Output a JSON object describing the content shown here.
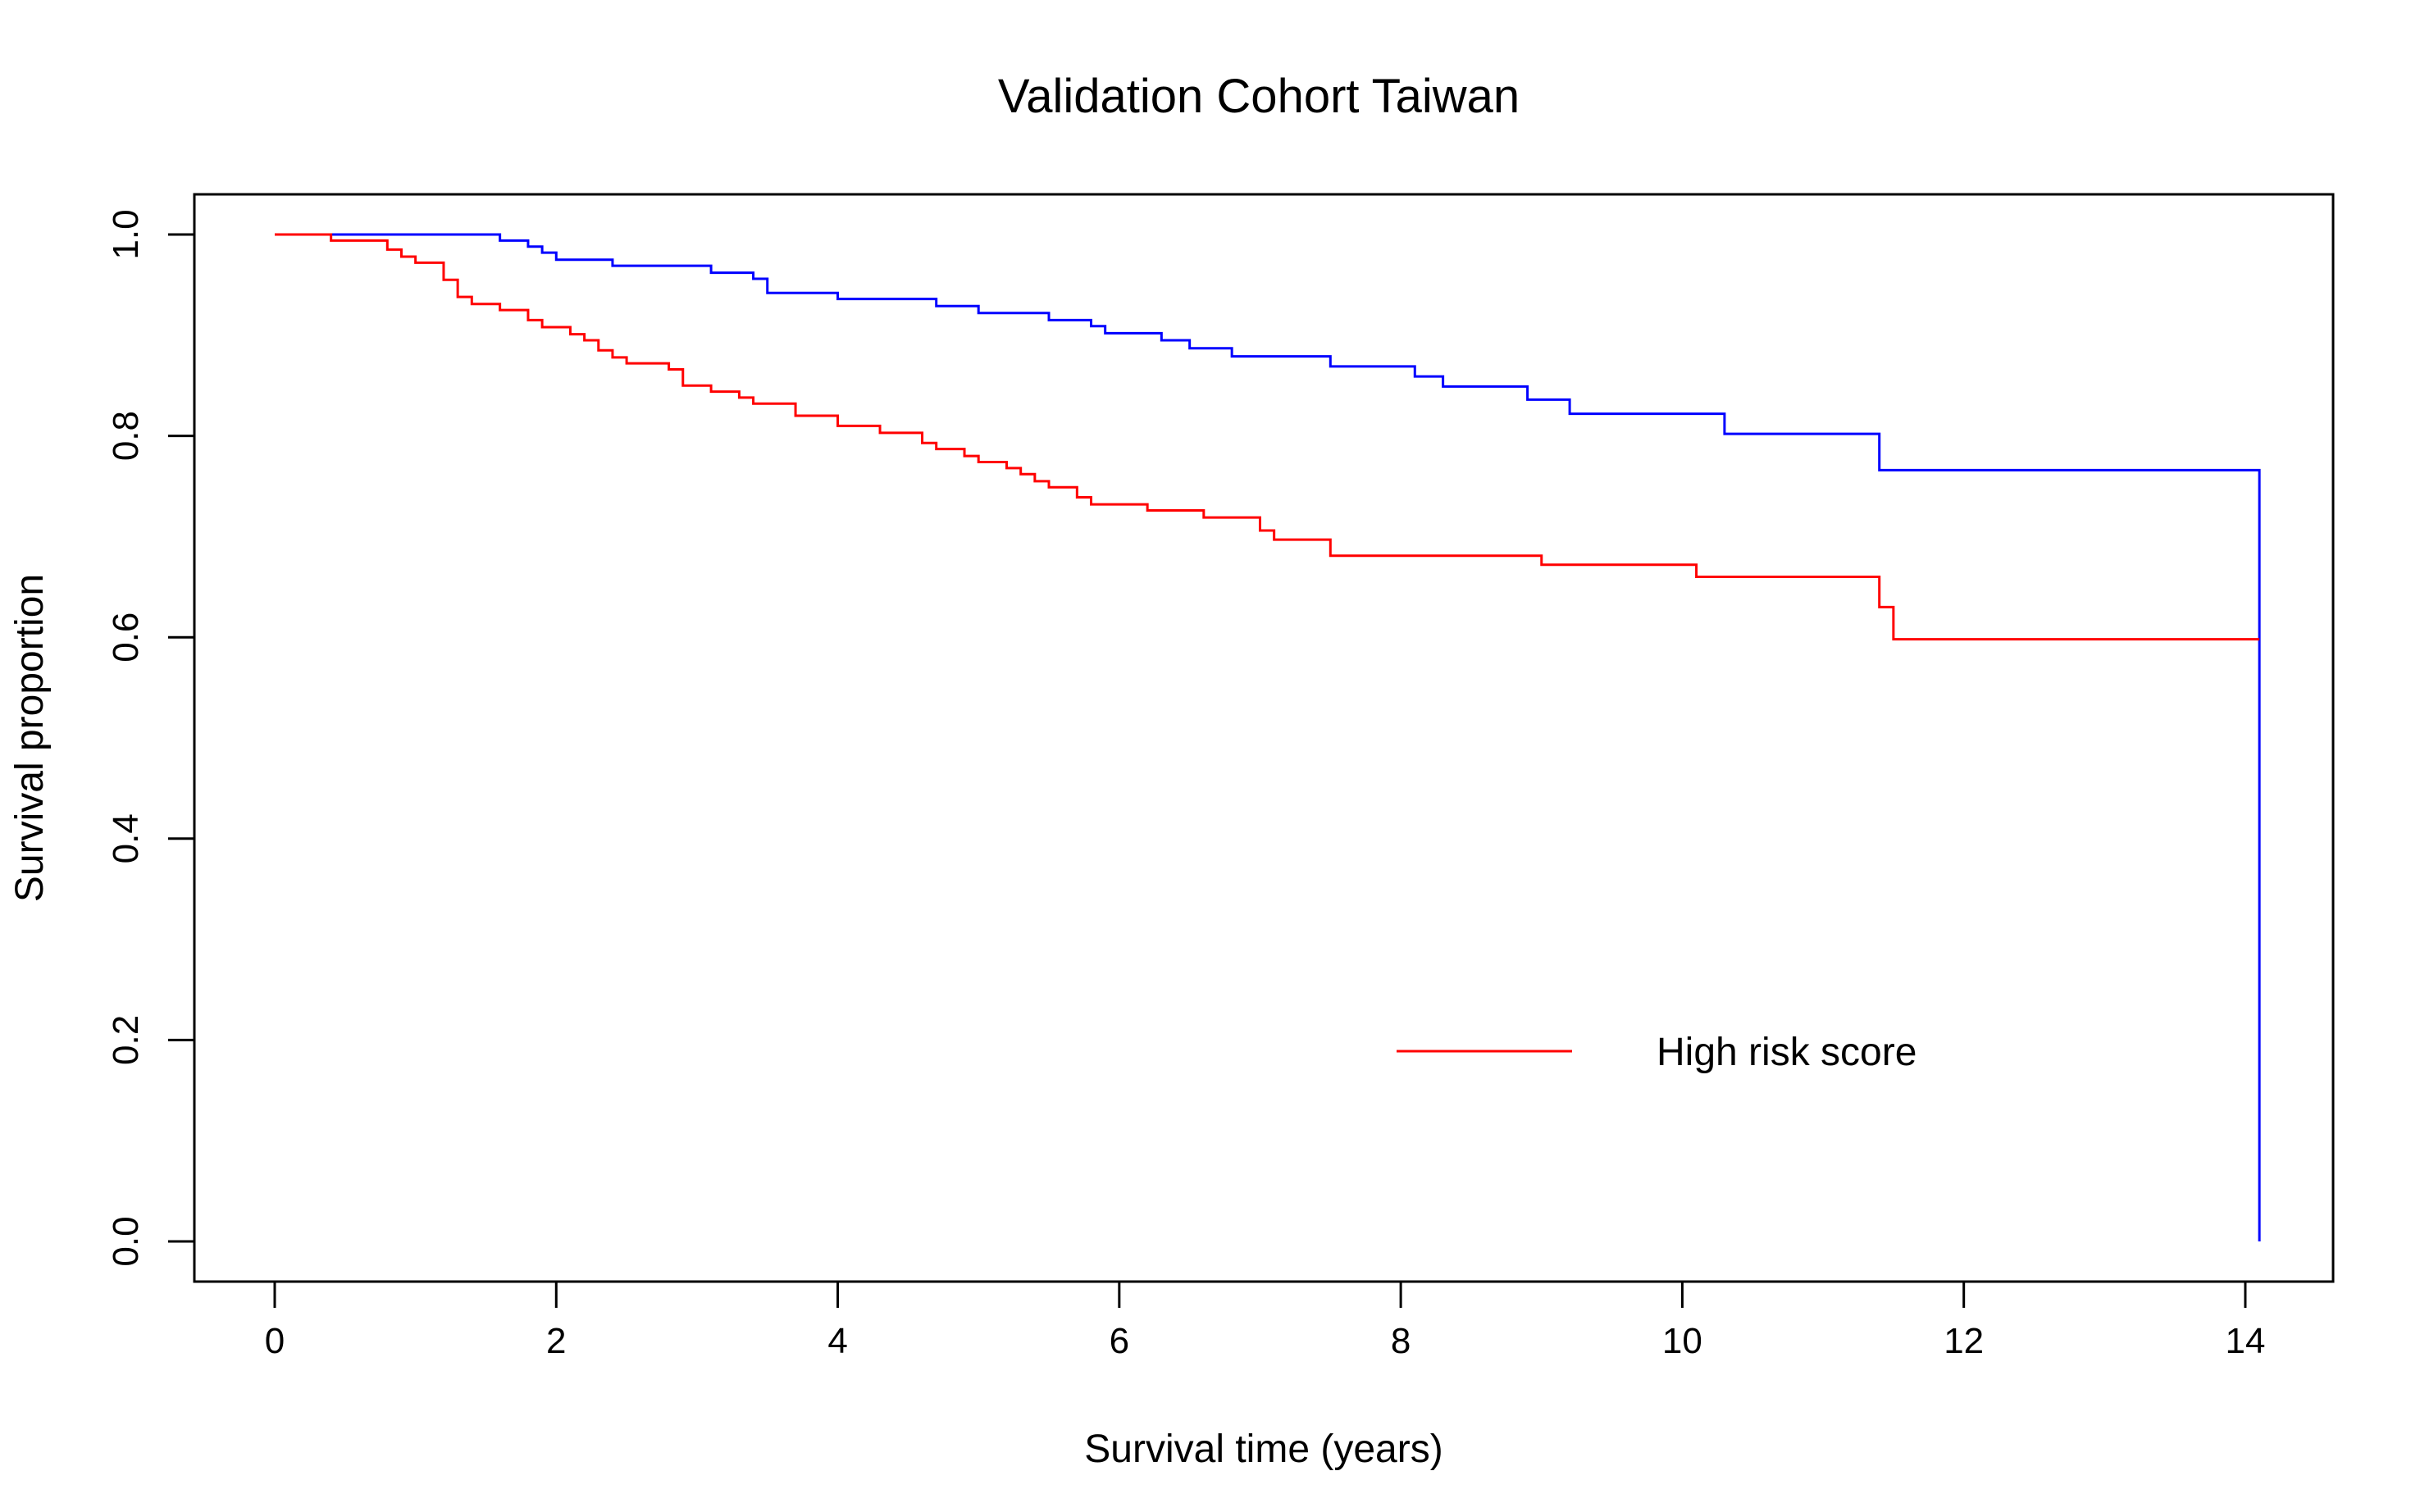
{
  "chart_data": {
    "type": "line",
    "title": "Validation Cohort Taiwan",
    "xlabel": "Survival time (years)",
    "ylabel": "Survival proportion",
    "xlim": [
      0,
      14.1
    ],
    "ylim": [
      0,
      1
    ],
    "x_ticks": [
      0,
      2,
      4,
      6,
      8,
      10,
      12,
      14
    ],
    "y_ticks": [
      0.0,
      0.2,
      0.4,
      0.6,
      0.8,
      1.0
    ],
    "x_tick_labels": [
      "0",
      "2",
      "4",
      "6",
      "8",
      "10",
      "12",
      "14"
    ],
    "y_tick_labels": [
      "0.0",
      "0.2",
      "0.4",
      "0.6",
      "0.8",
      "1.0"
    ],
    "grid": false,
    "legend_placement": "bottom-right",
    "legend_entries": [
      "High risk score"
    ],
    "series": [
      {
        "color": "#0000ff",
        "step": true,
        "x": [
          0,
          1.6,
          1.8,
          1.9,
          2.0,
          2.4,
          3.1,
          3.4,
          3.5,
          4.0,
          4.7,
          5.0,
          5.5,
          5.8,
          5.9,
          6.3,
          6.5,
          6.8,
          7.5,
          8.1,
          8.3,
          8.9,
          9.2,
          10.3,
          11.4,
          14.1,
          14.1
        ],
        "y": [
          1.0,
          0.994,
          0.988,
          0.982,
          0.975,
          0.969,
          0.962,
          0.956,
          0.942,
          0.936,
          0.929,
          0.922,
          0.915,
          0.909,
          0.902,
          0.895,
          0.887,
          0.879,
          0.869,
          0.859,
          0.849,
          0.836,
          0.822,
          0.802,
          0.766,
          0.766,
          0.0
        ]
      },
      {
        "name": "High risk score",
        "color": "#ff0000",
        "step": true,
        "x": [
          0,
          0.4,
          0.8,
          0.9,
          1.0,
          1.2,
          1.3,
          1.4,
          1.6,
          1.8,
          1.9,
          2.1,
          2.2,
          2.3,
          2.4,
          2.5,
          2.6,
          2.8,
          2.9,
          3.1,
          3.3,
          3.4,
          3.7,
          4.0,
          4.3,
          4.6,
          4.7,
          4.9,
          5.0,
          5.2,
          5.3,
          5.4,
          5.5,
          5.7,
          5.8,
          6.2,
          6.6,
          7.0,
          7.1,
          7.5,
          9.0,
          10.1,
          11.4,
          11.5,
          14.1
        ],
        "y": [
          1.0,
          0.994,
          0.985,
          0.978,
          0.972,
          0.955,
          0.938,
          0.931,
          0.925,
          0.915,
          0.908,
          0.901,
          0.895,
          0.885,
          0.878,
          0.872,
          0.872,
          0.866,
          0.85,
          0.844,
          0.838,
          0.832,
          0.82,
          0.81,
          0.803,
          0.793,
          0.787,
          0.78,
          0.774,
          0.768,
          0.762,
          0.755,
          0.749,
          0.739,
          0.732,
          0.726,
          0.719,
          0.706,
          0.697,
          0.681,
          0.672,
          0.66,
          0.63,
          0.598,
          0.598
        ]
      }
    ]
  }
}
